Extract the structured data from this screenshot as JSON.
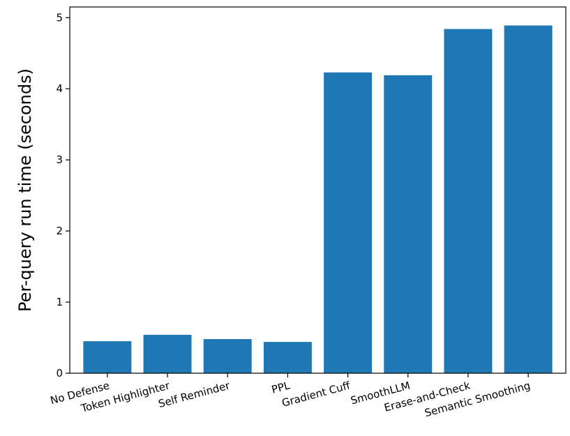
{
  "chart_data": {
    "type": "bar",
    "categories": [
      "No Defense",
      "Token Highlighter",
      "Self Reminder",
      "PPL",
      "Gradient Cuff",
      "SmoothLLM",
      "Erase-and-Check",
      "Semantic Smoothing"
    ],
    "values": [
      0.45,
      0.54,
      0.48,
      0.44,
      4.23,
      4.19,
      4.84,
      4.89
    ],
    "title": "",
    "xlabel": "",
    "ylabel": "Per-query run time (seconds)",
    "ylim": [
      0,
      5.15
    ],
    "yticks": [
      0,
      1,
      2,
      3,
      4,
      5
    ],
    "bar_color": "#1f77b4",
    "grid": false,
    "legend": "none"
  }
}
